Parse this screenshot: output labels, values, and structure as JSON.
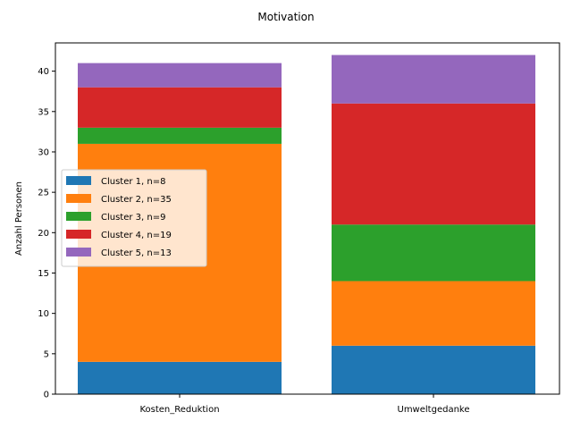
{
  "chart_data": {
    "type": "bar",
    "stacked": true,
    "title": "Motivation",
    "xlabel": "",
    "ylabel": "Anzahl Personen",
    "categories": [
      "Kosten_Reduktion",
      "Umweltgedanke"
    ],
    "ylim": [
      0,
      43.5
    ],
    "yticks": [
      0,
      5,
      10,
      15,
      20,
      25,
      30,
      35,
      40
    ],
    "grid": false,
    "legend_position": "center-left",
    "series": [
      {
        "name": "Cluster 1, n=8",
        "color": "#1f77b4",
        "values": [
          4,
          6
        ]
      },
      {
        "name": "Cluster 2, n=35",
        "color": "#ff7f0e",
        "values": [
          27,
          8
        ]
      },
      {
        "name": "Cluster 3, n=9",
        "color": "#2ca02c",
        "values": [
          2,
          7
        ]
      },
      {
        "name": "Cluster 4, n=19",
        "color": "#d62728",
        "values": [
          5,
          15
        ]
      },
      {
        "name": "Cluster 5, n=13",
        "color": "#9467bd",
        "values": [
          3,
          6
        ]
      }
    ]
  }
}
